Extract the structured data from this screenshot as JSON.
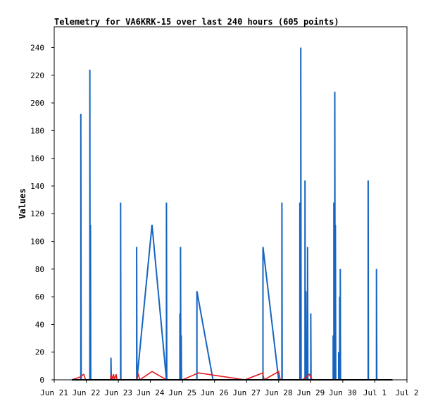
{
  "chart_data": {
    "type": "line",
    "title": "Telemetry for VA6KRK-15 over last 240 hours (605 points)",
    "xlabel": "",
    "ylabel": "Values",
    "x_ticks": [
      "Jun 21",
      "Jun 22",
      "Jun 23",
      "Jun 24",
      "Jun 25",
      "Jun 26",
      "Jun 27",
      "Jun 28",
      "Jun 29",
      "Jun 30",
      "Jul 1",
      "Jul 2"
    ],
    "y_ticks": [
      0,
      20,
      40,
      60,
      80,
      100,
      120,
      140,
      160,
      180,
      200,
      220,
      240
    ],
    "xlim_days": [
      0,
      11
    ],
    "ylim": [
      0,
      255
    ],
    "grid": false,
    "series": [
      {
        "color": "#1565c0",
        "points": [
          [
            0.55,
            0
          ],
          [
            0.83,
            0
          ],
          [
            0.83,
            192
          ],
          [
            0.84,
            0
          ],
          [
            1.11,
            0
          ],
          [
            1.11,
            224
          ],
          [
            1.12,
            0
          ],
          [
            1.13,
            0
          ],
          [
            1.13,
            112
          ],
          [
            1.14,
            0
          ],
          [
            1.77,
            0
          ],
          [
            1.77,
            16
          ],
          [
            1.78,
            0
          ],
          [
            2.07,
            0
          ],
          [
            2.07,
            128
          ],
          [
            2.08,
            0
          ],
          [
            2.57,
            0
          ],
          [
            2.57,
            96
          ],
          [
            2.58,
            0
          ],
          [
            3.05,
            112
          ],
          [
            3.5,
            0
          ],
          [
            3.5,
            128
          ],
          [
            3.51,
            0
          ],
          [
            3.92,
            0
          ],
          [
            3.92,
            48
          ],
          [
            3.93,
            0
          ],
          [
            3.94,
            0
          ],
          [
            3.94,
            96
          ],
          [
            3.95,
            0
          ],
          [
            3.96,
            0
          ],
          [
            3.96,
            32
          ],
          [
            3.97,
            0
          ],
          [
            4.45,
            0
          ],
          [
            4.45,
            64
          ],
          [
            4.95,
            0
          ],
          [
            6.51,
            0
          ],
          [
            6.51,
            96
          ],
          [
            7.0,
            0
          ],
          [
            7.1,
            0
          ],
          [
            7.1,
            128
          ],
          [
            7.11,
            0
          ],
          [
            7.66,
            0
          ],
          [
            7.66,
            128
          ],
          [
            7.67,
            0
          ],
          [
            7.69,
            0
          ],
          [
            7.69,
            240
          ],
          [
            7.7,
            0
          ],
          [
            7.82,
            0
          ],
          [
            7.82,
            144
          ],
          [
            7.83,
            0
          ],
          [
            7.85,
            0
          ],
          [
            7.85,
            64
          ],
          [
            7.86,
            0
          ],
          [
            7.9,
            0
          ],
          [
            7.9,
            96
          ],
          [
            7.91,
            0
          ],
          [
            8.0,
            0
          ],
          [
            8.0,
            48
          ],
          [
            8.01,
            0
          ],
          [
            8.7,
            0
          ],
          [
            8.7,
            32
          ],
          [
            8.71,
            0
          ],
          [
            8.72,
            0
          ],
          [
            8.72,
            128
          ],
          [
            8.73,
            0
          ],
          [
            8.75,
            0
          ],
          [
            8.75,
            208
          ],
          [
            8.76,
            0
          ],
          [
            8.77,
            0
          ],
          [
            8.77,
            112
          ],
          [
            8.78,
            0
          ],
          [
            8.87,
            0
          ],
          [
            8.87,
            20
          ],
          [
            8.88,
            0
          ],
          [
            8.9,
            0
          ],
          [
            8.9,
            60
          ],
          [
            8.91,
            0
          ],
          [
            8.92,
            0
          ],
          [
            8.92,
            80
          ],
          [
            8.93,
            0
          ],
          [
            9.79,
            0
          ],
          [
            9.79,
            144
          ],
          [
            9.8,
            0
          ],
          [
            10.05,
            0
          ],
          [
            10.05,
            80
          ],
          [
            10.06,
            0
          ],
          [
            10.55,
            0
          ]
        ]
      },
      {
        "color": "#e41a1c",
        "points": [
          [
            0.55,
            0
          ],
          [
            0.8,
            2
          ],
          [
            0.92,
            4
          ],
          [
            0.98,
            0
          ],
          [
            1.75,
            0
          ],
          [
            1.78,
            4
          ],
          [
            1.81,
            0
          ],
          [
            1.85,
            4
          ],
          [
            1.88,
            0
          ],
          [
            1.93,
            4
          ],
          [
            1.96,
            0
          ],
          [
            2.57,
            0
          ],
          [
            2.62,
            4
          ],
          [
            2.67,
            0
          ],
          [
            3.05,
            6
          ],
          [
            3.5,
            0
          ],
          [
            4.0,
            0
          ],
          [
            4.5,
            5
          ],
          [
            5.95,
            0
          ],
          [
            6.5,
            5
          ],
          [
            6.55,
            0
          ],
          [
            7.0,
            6
          ],
          [
            7.05,
            0
          ],
          [
            7.75,
            0
          ],
          [
            7.95,
            4
          ],
          [
            8.05,
            0
          ]
        ]
      }
    ]
  }
}
